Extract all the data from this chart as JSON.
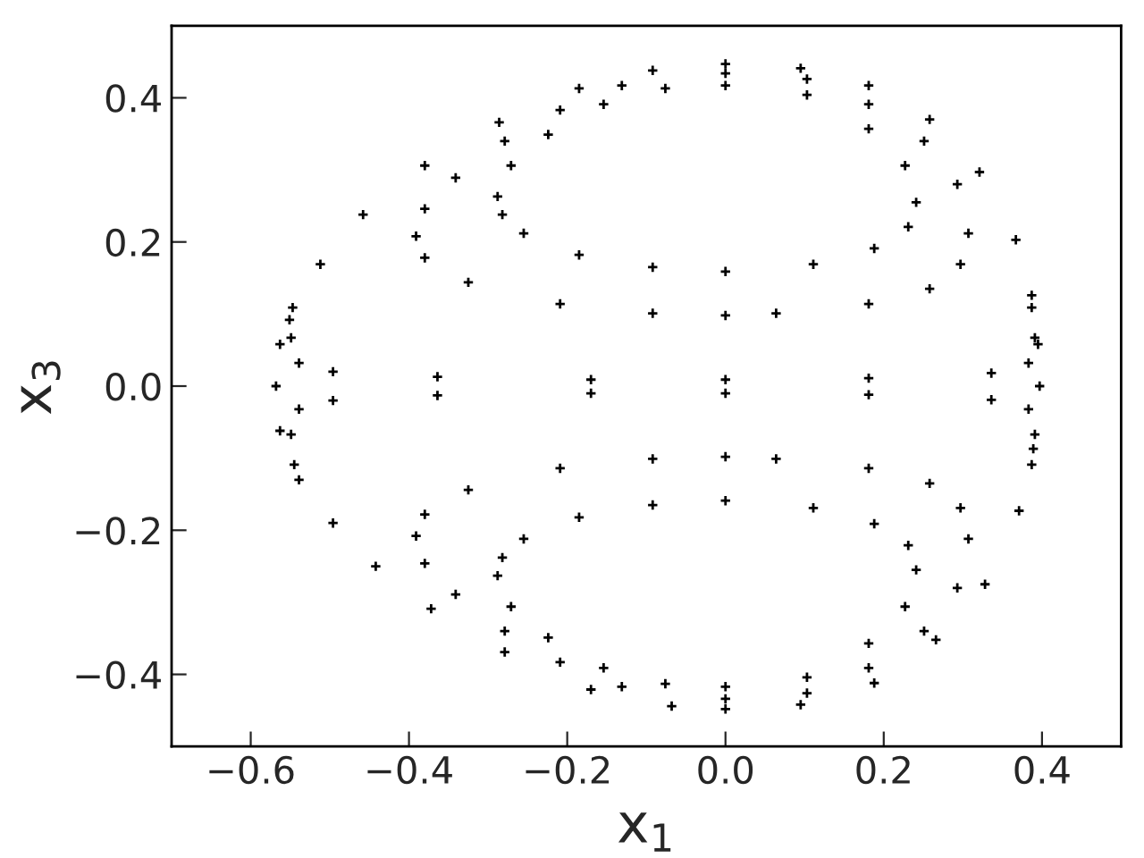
{
  "chart_data": {
    "type": "scatter",
    "xlabel": "x$_{1}$",
    "ylabel": "x$_{3}$",
    "xlim": [
      -0.7,
      0.5
    ],
    "ylim": [
      -0.5,
      0.5
    ],
    "xticks": [
      {
        "value": -0.6,
        "label": "−0.6"
      },
      {
        "value": -0.4,
        "label": "−0.4"
      },
      {
        "value": -0.2,
        "label": "−0.2"
      },
      {
        "value": 0.0,
        "label": "0.0"
      },
      {
        "value": 0.2,
        "label": "0.2"
      },
      {
        "value": 0.4,
        "label": "0.4"
      }
    ],
    "yticks": [
      {
        "value": -0.4,
        "label": "−0.4"
      },
      {
        "value": -0.2,
        "label": "−0.2"
      },
      {
        "value": 0.0,
        "label": "0.0"
      },
      {
        "value": 0.2,
        "label": "0.2"
      },
      {
        "value": 0.4,
        "label": "0.4"
      }
    ],
    "grid": false,
    "legend": false,
    "marker": "cross",
    "series": [
      {
        "color": "#000000",
        "x": [
          -0.568,
          -0.563,
          -0.547,
          -0.512,
          -0.458,
          -0.38,
          -0.286,
          -0.185,
          -0.092,
          0.0,
          0.095,
          0.181,
          0.258,
          0.321,
          0.367,
          0.387,
          0.395,
          0.397,
          0.389,
          0.371,
          0.328,
          0.266,
          0.188,
          0.095,
          0.0,
          -0.068,
          -0.17,
          -0.279,
          -0.372,
          -0.442,
          -0.496,
          -0.539,
          -0.563
        ],
        "values": [
          0.0,
          0.058,
          0.109,
          0.169,
          0.238,
          0.306,
          0.366,
          0.413,
          0.438,
          0.447,
          0.441,
          0.417,
          0.37,
          0.297,
          0.203,
          0.126,
          0.058,
          0.0,
          -0.087,
          -0.173,
          -0.275,
          -0.352,
          -0.412,
          -0.442,
          -0.448,
          -0.444,
          -0.421,
          -0.369,
          -0.309,
          -0.25,
          -0.19,
          -0.13,
          -0.062
        ]
      },
      {
        "color": "#000000",
        "x": [
          -0.551,
          -0.549,
          -0.539,
          -0.496,
          -0.364,
          -0.17,
          0.0,
          0.181,
          0.336,
          0.383,
          0.391,
          0.387,
          -0.545,
          -0.549,
          -0.539,
          -0.496,
          -0.364,
          -0.17,
          0.0,
          0.181,
          0.336,
          0.383,
          0.391,
          0.387
        ],
        "values": [
          0.092,
          0.067,
          0.032,
          0.02,
          0.013,
          0.009,
          0.009,
          0.011,
          0.018,
          0.032,
          0.067,
          0.109,
          -0.109,
          -0.067,
          -0.032,
          -0.02,
          -0.013,
          -0.01,
          -0.01,
          -0.012,
          -0.019,
          -0.032,
          -0.067,
          -0.109
        ]
      },
      {
        "color": "#000000",
        "x": [
          -0.391,
          -0.38,
          -0.341,
          -0.279,
          -0.209,
          -0.131,
          0.0,
          0.103,
          0.181,
          0.251,
          0.293,
          0.307,
          0.297,
          0.258,
          0.181,
          0.064,
          0.0,
          -0.092,
          -0.209,
          -0.325,
          -0.38,
          -0.391,
          -0.38,
          -0.341,
          -0.279,
          -0.209,
          -0.131,
          0.0,
          0.103,
          0.181,
          0.251,
          0.293,
          0.307,
          0.297,
          0.258,
          0.181,
          0.064,
          0.0,
          -0.092,
          -0.209,
          -0.325,
          -0.38
        ],
        "values": [
          0.208,
          0.246,
          0.289,
          0.34,
          0.383,
          0.417,
          0.434,
          0.426,
          0.391,
          0.34,
          0.28,
          0.212,
          0.169,
          0.135,
          0.114,
          0.101,
          0.098,
          0.101,
          0.114,
          0.144,
          0.178,
          -0.208,
          -0.246,
          -0.289,
          -0.34,
          -0.383,
          -0.417,
          -0.434,
          -0.426,
          -0.391,
          -0.34,
          -0.28,
          -0.212,
          -0.169,
          -0.135,
          -0.114,
          -0.101,
          -0.098,
          -0.101,
          -0.114,
          -0.144,
          -0.178
        ]
      },
      {
        "color": "#000000",
        "x": [
          -0.288,
          -0.271,
          -0.224,
          -0.154,
          -0.076,
          0.0,
          0.103,
          0.181,
          0.227,
          0.241,
          0.231,
          0.188,
          0.111,
          0.0,
          -0.092,
          -0.185,
          -0.255,
          -0.282,
          -0.288,
          -0.271,
          -0.224,
          -0.154,
          -0.076,
          0.0,
          0.103,
          0.181,
          0.227,
          0.241,
          0.231,
          0.188,
          0.111,
          0.0,
          -0.092,
          -0.185,
          -0.255,
          -0.282
        ],
        "values": [
          0.263,
          0.306,
          0.349,
          0.391,
          0.413,
          0.417,
          0.404,
          0.357,
          0.306,
          0.255,
          0.221,
          0.191,
          0.169,
          0.159,
          0.165,
          0.182,
          0.212,
          0.238,
          -0.263,
          -0.306,
          -0.349,
          -0.391,
          -0.413,
          -0.417,
          -0.404,
          -0.357,
          -0.306,
          -0.255,
          -0.221,
          -0.191,
          -0.169,
          -0.159,
          -0.165,
          -0.182,
          -0.212,
          -0.238
        ]
      }
    ]
  }
}
